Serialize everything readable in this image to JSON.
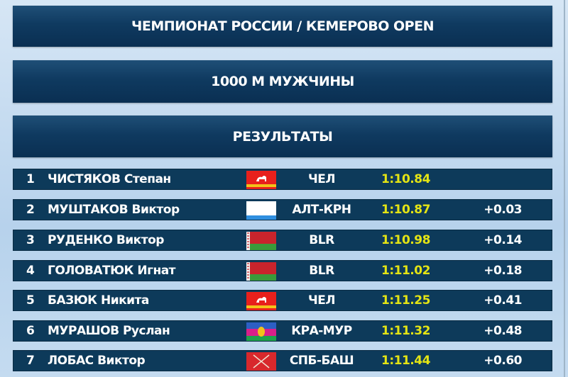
{
  "header": {
    "title": "ЧЕМПИОНАТ РОССИИ / КЕМЕРОВО OPEN",
    "event": "1000 М МУЖЧИНЫ",
    "section": "РЕЗУЛЬТАТЫ"
  },
  "colors": {
    "time": "#e4e414",
    "row_bg": "#0d3a5a"
  },
  "results": [
    {
      "rank": "1",
      "name": "ЧИСТЯКОВ Степан",
      "flag": "chelyabinsk-flag",
      "team": "ЧЕЛ",
      "time": "1:10.84",
      "diff": ""
    },
    {
      "rank": "2",
      "name": "МУШТАКОВ Виктор",
      "flag": "altai-krai-flag",
      "team": "АЛТ-КРН",
      "time": "1:10.87",
      "diff": "+0.03"
    },
    {
      "rank": "3",
      "name": "РУДЕНКО Виктор",
      "flag": "belarus-flag",
      "team": "BLR",
      "time": "1:10.98",
      "diff": "+0.14"
    },
    {
      "rank": "4",
      "name": "ГОЛОВАТЮК Игнат",
      "flag": "belarus-flag",
      "team": "BLR",
      "time": "1:11.02",
      "diff": "+0.18"
    },
    {
      "rank": "5",
      "name": "БАЗЮК Никита",
      "flag": "chelyabinsk-flag",
      "team": "ЧЕЛ",
      "time": "1:11.25",
      "diff": "+0.41"
    },
    {
      "rank": "6",
      "name": "МУРАШОВ Руслан",
      "flag": "krasnodar-flag",
      "team": "КРА-МУР",
      "time": "1:11.32",
      "diff": "+0.48"
    },
    {
      "rank": "7",
      "name": "ЛОБАС Виктор",
      "flag": "saint-petersburg-flag",
      "team": "СПБ-БАШ",
      "time": "1:11.44",
      "diff": "+0.60"
    }
  ]
}
